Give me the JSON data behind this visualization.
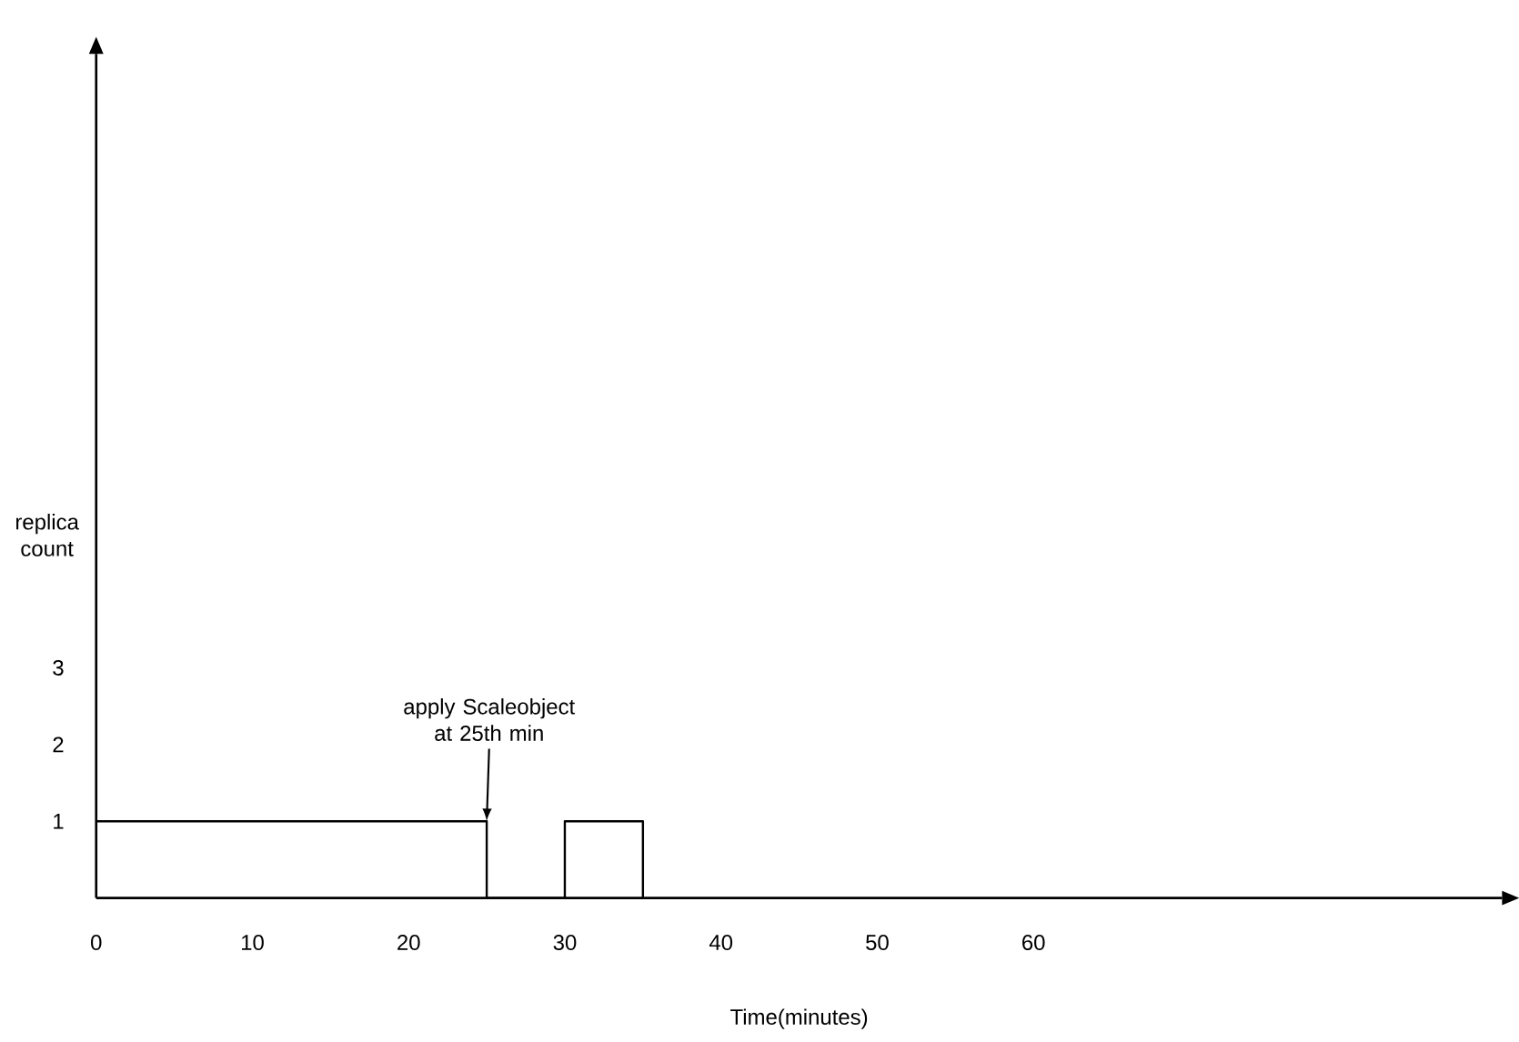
{
  "chart_data": {
    "type": "line",
    "xlabel": "Time(minutes)",
    "ylabel": "replica count",
    "x": [
      0,
      25,
      25,
      30,
      30,
      35,
      35
    ],
    "values": [
      1,
      1,
      0,
      0,
      1,
      1,
      0
    ],
    "color": "#000000",
    "marker": "none",
    "line_style": "solid",
    "xlim": [
      0,
      90
    ],
    "ylim": [
      0,
      11
    ],
    "xticks": [
      0,
      10,
      20,
      30,
      40,
      50,
      60
    ],
    "yticks": [
      1,
      2,
      3
    ],
    "annotations": [
      {
        "text": "apply Scaleobject at 25th min",
        "x": 25,
        "y": 1
      }
    ]
  }
}
